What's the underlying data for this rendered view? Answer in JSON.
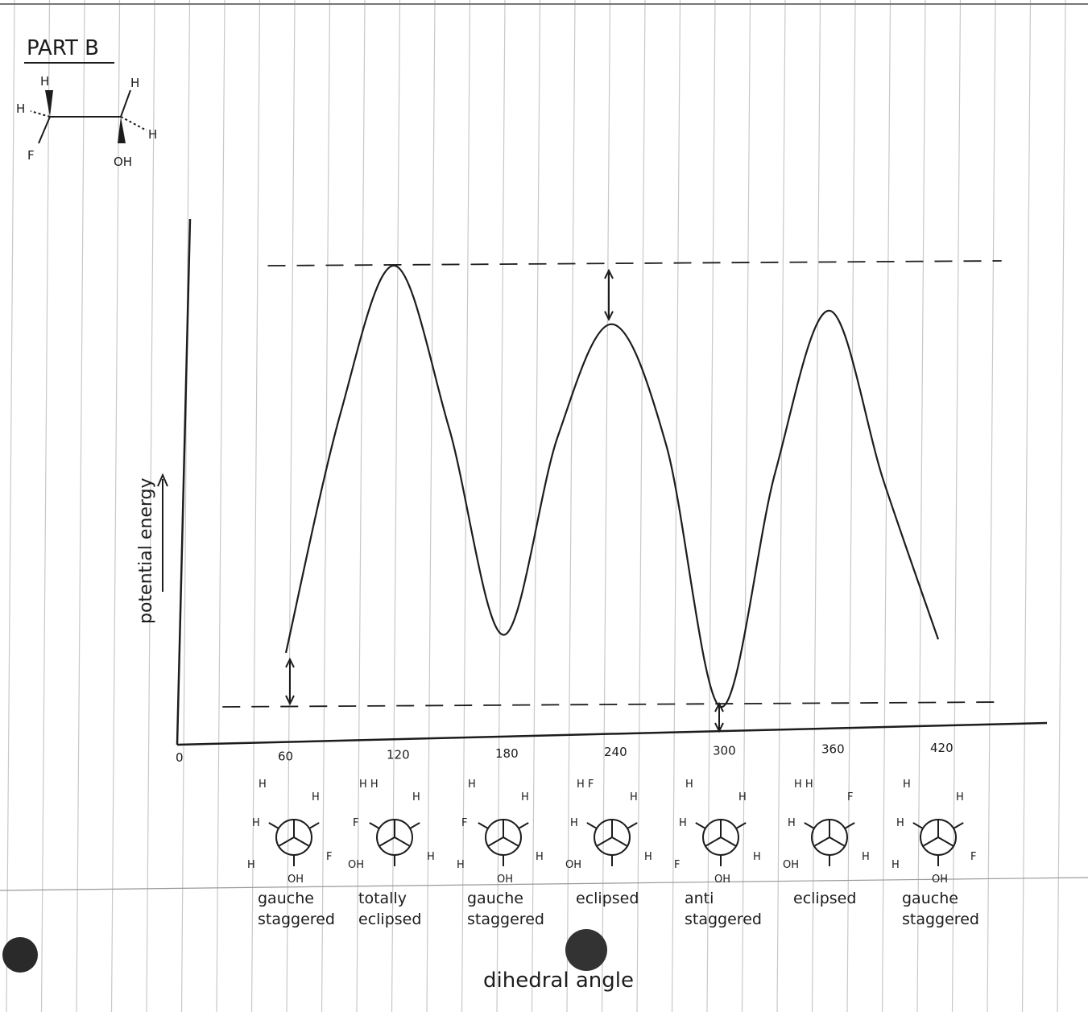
{
  "header": {
    "title": "PART B"
  },
  "molecule": {
    "atoms": [
      "H",
      "H",
      "H",
      "H",
      "F",
      "OH"
    ]
  },
  "chart_data": {
    "type": "line",
    "title": "",
    "xlabel": "dihedral angle",
    "ylabel": "potential energy",
    "x": [
      60,
      90,
      120,
      150,
      180,
      210,
      240,
      270,
      300,
      330,
      360,
      390,
      420
    ],
    "y": [
      1.2,
      6.5,
      9.8,
      6.2,
      1.6,
      6.0,
      8.5,
      5.8,
      0.0,
      5.2,
      8.8,
      5.0,
      1.5
    ],
    "xticks": [
      "0",
      "60",
      "120",
      "180",
      "240",
      "300",
      "360",
      "420"
    ],
    "xlim": [
      0,
      480
    ],
    "ylim": [
      -1.5,
      10.5
    ],
    "reference_lines": [
      {
        "style": "dashed",
        "level": "max"
      },
      {
        "style": "dashed",
        "level": "min"
      }
    ],
    "conformations": [
      {
        "angle": 60,
        "line1": "gauche",
        "line2": "staggered",
        "atoms": [
          "H",
          "H",
          "H",
          "H",
          "F",
          "OH"
        ]
      },
      {
        "angle": 120,
        "line1": "totally",
        "line2": "eclipsed",
        "atoms": [
          "H H",
          "F",
          "OH",
          "H",
          "H"
        ]
      },
      {
        "angle": 180,
        "line1": "gauche",
        "line2": "staggered",
        "atoms": [
          "H",
          "F",
          "H",
          "H",
          "H",
          "OH"
        ]
      },
      {
        "angle": 240,
        "line1": "eclipsed",
        "line2": "",
        "atoms": [
          "H F",
          "H",
          "OH",
          "H",
          "H"
        ]
      },
      {
        "angle": 300,
        "line1": "anti",
        "line2": "staggered",
        "atoms": [
          "H",
          "H",
          "F",
          "H",
          "H",
          "OH"
        ]
      },
      {
        "angle": 360,
        "line1": "eclipsed",
        "line2": "",
        "atoms": [
          "H H",
          "H",
          "OH",
          "F",
          "H"
        ]
      },
      {
        "angle": 420,
        "line1": "gauche",
        "line2": "staggered",
        "atoms": [
          "H",
          "H",
          "H",
          "H",
          "F",
          "OH"
        ]
      }
    ]
  },
  "colors": {
    "ink": "#1c1c1c",
    "rule": "#c8c8c8",
    "punch": "#2a2a2a"
  }
}
